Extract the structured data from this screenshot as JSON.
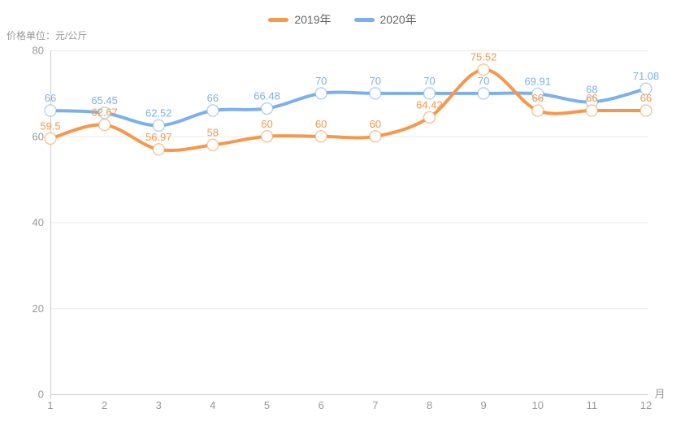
{
  "title": {
    "unit_label": "价格单位：元/公斤"
  },
  "legend": [
    {
      "label": "2019年",
      "color": "#f7974b"
    },
    {
      "label": "2020年",
      "color": "#7db0eb"
    }
  ],
  "chart_data": {
    "type": "line",
    "smooth": true,
    "categories": [
      "1",
      "2",
      "3",
      "4",
      "5",
      "6",
      "7",
      "8",
      "9",
      "10",
      "11",
      "12"
    ],
    "series": [
      {
        "name": "2019年",
        "color": "#f7974b",
        "label_color": "#f7974b",
        "values": [
          59.5,
          62.67,
          56.97,
          58,
          60,
          60,
          60,
          64.42,
          75.52,
          66,
          66,
          66
        ]
      },
      {
        "name": "2020年",
        "color": "#7db0eb",
        "label_color": "#7db0eb",
        "values": [
          66,
          65.45,
          62.52,
          66,
          66.48,
          70,
          70,
          70,
          70,
          69.91,
          68,
          71.08
        ]
      }
    ],
    "xlabel": "月",
    "ylabel": "价格单位：元/公斤",
    "ylim": [
      0,
      80
    ],
    "yticks": [
      0,
      20,
      40,
      60,
      80
    ],
    "grid": true,
    "legend_position": "top",
    "axis_color": "#cccccc",
    "grid_color": "#e9e9e9",
    "tick_color": "#999999"
  }
}
